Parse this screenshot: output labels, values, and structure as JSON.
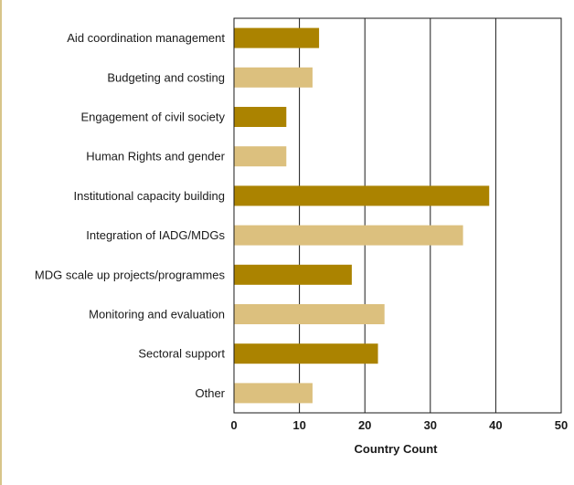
{
  "chart_data": {
    "type": "bar",
    "orientation": "horizontal",
    "categories": [
      "Aid coordination management",
      "Budgeting and costing",
      "Engagement of civil society",
      "Human Rights and gender",
      "Institutional capacity building",
      "Integration of IADG/MDGs",
      "MDG scale up projects/programmes",
      "Monitoring and evaluation",
      "Sectoral support",
      "Other"
    ],
    "values": [
      13,
      12,
      8,
      8,
      39,
      35,
      18,
      23,
      22,
      12
    ],
    "bar_colors": [
      "#ab8300",
      "#dcc07e",
      "#ab8300",
      "#dcc07e",
      "#ab8300",
      "#dcc07e",
      "#ab8300",
      "#dcc07e",
      "#ab8300",
      "#dcc07e"
    ],
    "xlabel": "Country Count",
    "ylabel": "",
    "xlim": [
      0,
      50
    ],
    "xticks": [
      0,
      10,
      20,
      30,
      40,
      50
    ],
    "grid": "vertical lines",
    "legend": "none"
  }
}
